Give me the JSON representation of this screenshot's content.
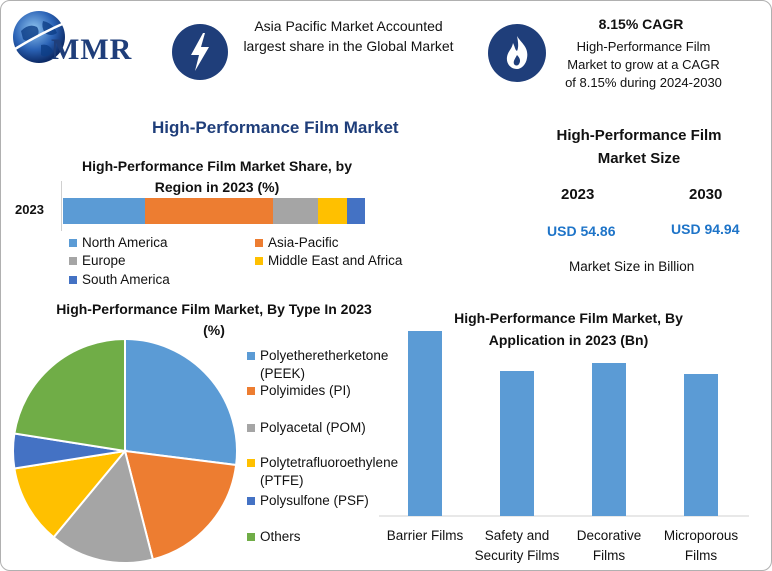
{
  "colors": {
    "blue": "#5b9bd5",
    "orange": "#ed7d31",
    "gray": "#a5a5a5",
    "yellow": "#ffc000",
    "darkblue": "#4472c4",
    "green": "#70ad47",
    "navy": "#1f3e7a",
    "bar": "#5b9bd5"
  },
  "logo": {
    "text": "MMR"
  },
  "header": {
    "left_icon": "lightning-icon",
    "left_text": "Asia Pacific Market Accounted largest share in the Global Market",
    "right_icon": "flame-icon",
    "cagr_title": "8.15% CAGR",
    "cagr_text": "High-Performance Film Market to grow at a CAGR of 8.15% during 2024-2030"
  },
  "main_title": "High-Performance Film Market",
  "market_size": {
    "title": "High-Performance Film Market Size",
    "year1": "2023",
    "year2": "2030",
    "value1": "USD 54.86",
    "value2": "USD 94.94",
    "unit_note": "Market Size in Billion"
  },
  "chart_data": [
    {
      "type": "bar",
      "orientation": "horizontal-stacked",
      "title": "High-Performance Film Market Share, by Region in 2023 (%)",
      "categories": [
        "2023"
      ],
      "series": [
        {
          "name": "North America",
          "values": [
            27
          ]
        },
        {
          "name": "Asia-Pacific",
          "values": [
            42.5
          ]
        },
        {
          "name": "Europe",
          "values": [
            15
          ]
        },
        {
          "name": "Middle East and Africa",
          "values": [
            9.5
          ]
        },
        {
          "name": "South America",
          "values": [
            6
          ]
        }
      ]
    },
    {
      "type": "pie",
      "title": "High-Performance Film Market, By Type In 2023 (%)",
      "labels": [
        "Polyetheretherketone (PEEK)",
        "Polyimides (PI)",
        "Polyacetal (POM)",
        "Polytetrafluoroethylene (PTFE)",
        "Polysulfone (PSF)",
        "Others"
      ],
      "values": [
        27,
        19,
        15,
        11.5,
        5,
        22.5
      ]
    },
    {
      "type": "bar",
      "title": "High-Performance Film Market, By Application in 2023 (Bn)",
      "categories": [
        "Barrier Films",
        "Safety and Security Films",
        "Decorative Films",
        "Microporous Films"
      ],
      "values": [
        18.5,
        14.5,
        15.3,
        14.2
      ],
      "ylim": [
        0,
        19.5
      ]
    }
  ]
}
